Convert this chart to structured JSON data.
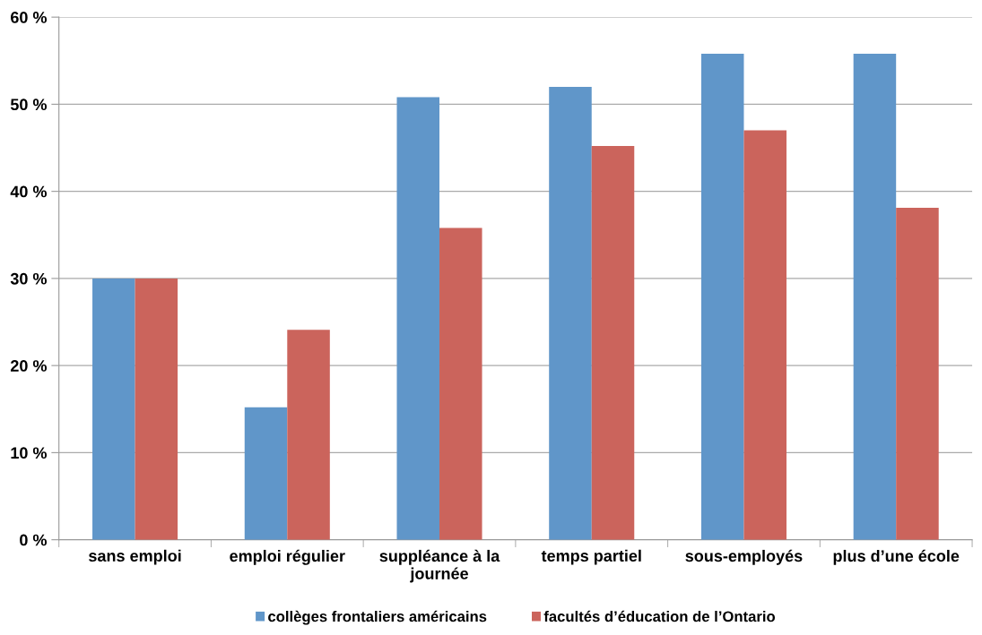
{
  "chart_data": {
    "type": "bar",
    "categories": [
      "sans emploi",
      "emploi régulier",
      "suppléance à la journée",
      "temps partiel",
      "sous-employés",
      "plus d’une école"
    ],
    "series": [
      {
        "name": "collèges frontaliers américains",
        "color": "#6096c9",
        "values": [
          30.0,
          15.2,
          50.8,
          52.0,
          55.8,
          55.8
        ]
      },
      {
        "name": "facultés d’éducation de l’Ontario",
        "color": "#cb645c",
        "values": [
          30.0,
          24.1,
          35.8,
          45.2,
          47.0,
          38.1
        ]
      }
    ],
    "ylim": [
      0,
      60
    ],
    "yticks": [
      {
        "value": 0,
        "label": "0 %"
      },
      {
        "value": 10,
        "label": "10 %"
      },
      {
        "value": 20,
        "label": "20 %"
      },
      {
        "value": 30,
        "label": "30 %"
      },
      {
        "value": 40,
        "label": "40 %"
      },
      {
        "value": 50,
        "label": "50 %"
      },
      {
        "value": 60,
        "label": "60 %"
      }
    ],
    "grid": "y",
    "legend": "bottom"
  }
}
